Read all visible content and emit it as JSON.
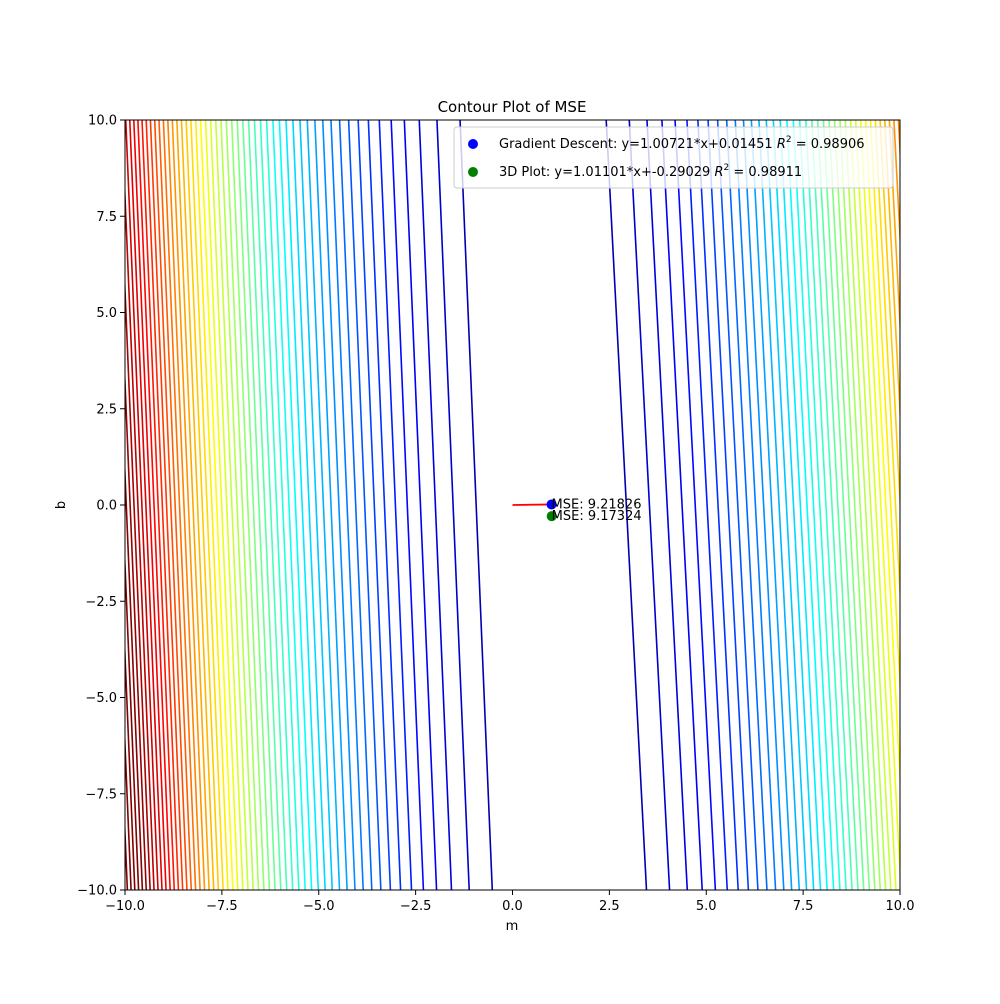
{
  "chart_data": {
    "type": "contour",
    "title": "Contour Plot of MSE",
    "xlabel": "m",
    "ylabel": "b",
    "xlim": [
      -10,
      10
    ],
    "ylim": [
      -10,
      10
    ],
    "xticks": [
      -10.0,
      -7.5,
      -5.0,
      -2.5,
      0.0,
      2.5,
      5.0,
      7.5,
      10.0
    ],
    "yticks": [
      -10.0,
      -7.5,
      -5.0,
      -2.5,
      0.0,
      2.5,
      5.0,
      7.5,
      10.0
    ],
    "xtick_labels": [
      "−10.0",
      "−7.5",
      "−5.0",
      "−2.5",
      "0.0",
      "2.5",
      "5.0",
      "7.5",
      "10.0"
    ],
    "ytick_labels": [
      "−10.0",
      "−7.5",
      "−5.0",
      "−2.5",
      "0.0",
      "2.5",
      "5.0",
      "7.5",
      "10.0"
    ],
    "colormap": "jet",
    "grid": false,
    "legend_position": "top-right",
    "contour_model": {
      "minimum_m": 1.0,
      "b_tilt_per_unit": -0.0104,
      "dense_side": "left"
    },
    "path": {
      "color": "#ff0000",
      "points": [
        [
          0.0,
          0.0
        ],
        [
          1.00721,
          0.01451
        ]
      ]
    },
    "points": [
      {
        "name": "Gradient Descent",
        "m": 1.00721,
        "b": 0.01451,
        "color": "#0000ff",
        "legend_text": "Gradient Descent: y=1.00721*x+0.01451",
        "r2_value": "0.98906",
        "annotation": "MSE: 9.21826"
      },
      {
        "name": "3D Plot",
        "m": 1.01101,
        "b": -0.29029,
        "color": "#008000",
        "legend_text": "3D Plot: y=1.01101*x+-0.29029",
        "r2_value": "0.98911",
        "annotation": "MSE: 9.17324"
      }
    ]
  }
}
